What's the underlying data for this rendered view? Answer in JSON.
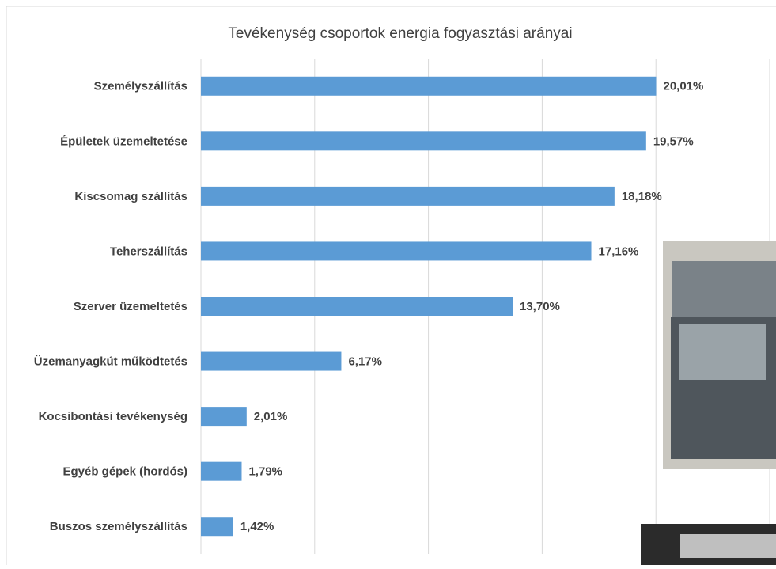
{
  "chart_data": {
    "type": "bar",
    "orientation": "horizontal",
    "title": "Tevékenység csoportok energia fogyasztási arányai",
    "categories": [
      "Személyszállítás",
      "Épületek üzemeltetése",
      "Kiscsomag szállítás",
      "Teherszállítás",
      "Szerver üzemeltetés",
      "Üzemanyagkút működtetés",
      "Kocsibontási tevékenység",
      "Egyéb gépek (hordós)",
      "Buszos személyszállítás"
    ],
    "values": [
      20.01,
      19.57,
      18.18,
      17.16,
      13.7,
      6.17,
      2.01,
      1.79,
      1.42
    ],
    "value_labels": [
      "20,01%",
      "19,57%",
      "18,18%",
      "17,16%",
      "13,70%",
      "6,17%",
      "2,01%",
      "1,79%",
      "1,42%"
    ],
    "color": "#5b9bd5",
    "xlim": [
      0,
      25
    ],
    "xticks": [
      0,
      5,
      10,
      15,
      20,
      25
    ],
    "grid": true
  }
}
